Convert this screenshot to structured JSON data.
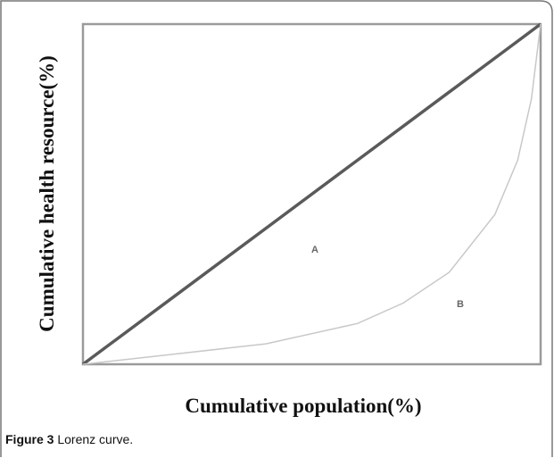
{
  "chart_data": {
    "type": "line",
    "x_label": "Cumulative population(%)",
    "y_label": "Cumulative health resource(%)",
    "caption_label": "Figure 3",
    "caption": "Lorenz curve.",
    "annotations": [
      "A",
      "B"
    ],
    "x": [
      0,
      20,
      40,
      60,
      70,
      80,
      90,
      95,
      98,
      100
    ],
    "series": [
      {
        "color": "#5a5a5a",
        "values": [
          0,
          20,
          40,
          60,
          70,
          80,
          90,
          95,
          98,
          100
        ]
      },
      {
        "color": "#c8c8c8",
        "values": [
          0,
          3,
          6,
          12,
          18,
          27,
          44,
          60,
          78,
          100
        ]
      }
    ],
    "xlim": [
      0,
      100
    ],
    "ylim": [
      0,
      100
    ],
    "grid": false
  }
}
